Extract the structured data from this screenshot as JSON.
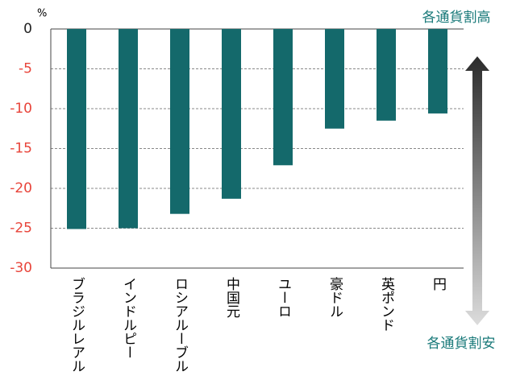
{
  "chart_data": {
    "type": "bar",
    "unit": "%",
    "categories": [
      "ブラジルレアル",
      "インドルピー",
      "ロシアルーブル",
      "中国元",
      "ユーロ",
      "豪ドル",
      "英ポンド",
      "円"
    ],
    "values": [
      -25.1,
      -25.0,
      -23.2,
      -21.3,
      -17.1,
      -12.5,
      -11.5,
      -10.6
    ],
    "color": "#14696b",
    "ylim": [
      -30,
      0
    ],
    "yticks": [
      0,
      -5,
      -10,
      -15,
      -20,
      -25,
      -30
    ],
    "negative_tick_color": "#e8443a",
    "grid": true,
    "annotations": [
      "各通貨割高",
      "各通貨割安"
    ],
    "annotation_color": "#1a7a7a"
  }
}
